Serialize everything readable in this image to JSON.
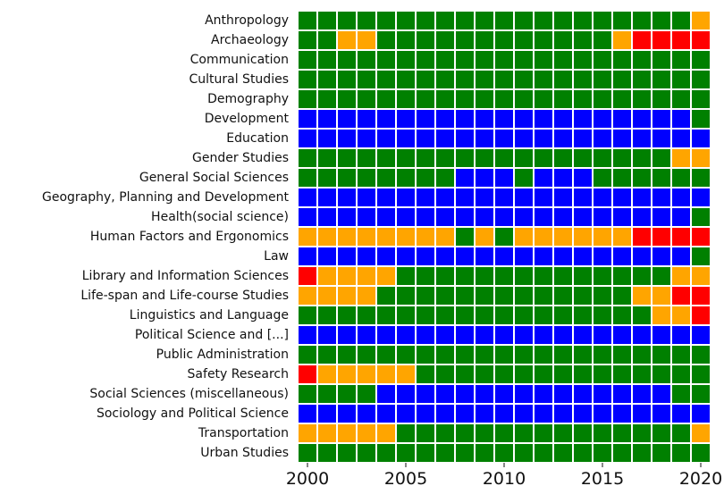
{
  "chart_data": {
    "type": "heatmap",
    "x": [
      2000,
      2001,
      2002,
      2003,
      2004,
      2005,
      2006,
      2007,
      2008,
      2009,
      2010,
      2011,
      2012,
      2013,
      2014,
      2015,
      2016,
      2017,
      2018,
      2019,
      2020
    ],
    "categories": [
      "Anthropology",
      "Archaeology",
      "Communication",
      "Cultural Studies",
      "Demography",
      "Development",
      "Education",
      "Gender Studies",
      "General Social Sciences",
      "Geography, Planning and Development",
      "Health(social science)",
      "Human Factors and Ergonomics",
      "Law",
      "Library and Information Sciences",
      "Life-span and Life-course Studies",
      "Linguistics and Language",
      "Political Science and [...]",
      "Public Administration",
      "Safety Research",
      "Social Sciences (miscellaneous)",
      "Sociology and Political Science",
      "Transportation",
      "Urban Studies"
    ],
    "colors": [
      "#008000",
      "#0000ff",
      "#ffa500",
      "#ff0000"
    ],
    "z": [
      [
        0,
        0,
        0,
        0,
        0,
        0,
        0,
        0,
        0,
        0,
        0,
        0,
        0,
        0,
        0,
        0,
        0,
        0,
        0,
        0,
        2
      ],
      [
        0,
        0,
        2,
        2,
        0,
        0,
        0,
        0,
        0,
        0,
        0,
        0,
        0,
        0,
        0,
        0,
        2,
        3,
        3,
        3,
        3
      ],
      [
        0,
        0,
        0,
        0,
        0,
        0,
        0,
        0,
        0,
        0,
        0,
        0,
        0,
        0,
        0,
        0,
        0,
        0,
        0,
        0,
        0
      ],
      [
        0,
        0,
        0,
        0,
        0,
        0,
        0,
        0,
        0,
        0,
        0,
        0,
        0,
        0,
        0,
        0,
        0,
        0,
        0,
        0,
        0
      ],
      [
        0,
        0,
        0,
        0,
        0,
        0,
        0,
        0,
        0,
        0,
        0,
        0,
        0,
        0,
        0,
        0,
        0,
        0,
        0,
        0,
        0
      ],
      [
        1,
        1,
        1,
        1,
        1,
        1,
        1,
        1,
        1,
        1,
        1,
        1,
        1,
        1,
        1,
        1,
        1,
        1,
        1,
        1,
        0
      ],
      [
        1,
        1,
        1,
        1,
        1,
        1,
        1,
        1,
        1,
        1,
        1,
        1,
        1,
        1,
        1,
        1,
        1,
        1,
        1,
        1,
        1
      ],
      [
        0,
        0,
        0,
        0,
        0,
        0,
        0,
        0,
        0,
        0,
        0,
        0,
        0,
        0,
        0,
        0,
        0,
        0,
        0,
        2,
        2
      ],
      [
        0,
        0,
        0,
        0,
        0,
        0,
        0,
        0,
        1,
        1,
        1,
        0,
        1,
        1,
        1,
        0,
        0,
        0,
        0,
        0,
        0
      ],
      [
        1,
        1,
        1,
        1,
        1,
        1,
        1,
        1,
        1,
        1,
        1,
        1,
        1,
        1,
        1,
        1,
        1,
        1,
        1,
        1,
        1
      ],
      [
        1,
        1,
        1,
        1,
        1,
        1,
        1,
        1,
        1,
        1,
        1,
        1,
        1,
        1,
        1,
        1,
        1,
        1,
        1,
        1,
        0
      ],
      [
        2,
        2,
        2,
        2,
        2,
        2,
        2,
        2,
        0,
        2,
        0,
        2,
        2,
        2,
        2,
        2,
        2,
        3,
        3,
        3,
        3
      ],
      [
        1,
        1,
        1,
        1,
        1,
        1,
        1,
        1,
        1,
        1,
        1,
        1,
        1,
        1,
        1,
        1,
        1,
        1,
        1,
        1,
        0
      ],
      [
        3,
        2,
        2,
        2,
        2,
        0,
        0,
        0,
        0,
        0,
        0,
        0,
        0,
        0,
        0,
        0,
        0,
        0,
        0,
        2,
        2
      ],
      [
        2,
        2,
        2,
        2,
        0,
        0,
        0,
        0,
        0,
        0,
        0,
        0,
        0,
        0,
        0,
        0,
        0,
        2,
        2,
        3,
        3
      ],
      [
        0,
        0,
        0,
        0,
        0,
        0,
        0,
        0,
        0,
        0,
        0,
        0,
        0,
        0,
        0,
        0,
        0,
        0,
        2,
        2,
        3
      ],
      [
        1,
        1,
        1,
        1,
        1,
        1,
        1,
        1,
        1,
        1,
        1,
        1,
        1,
        1,
        1,
        1,
        1,
        1,
        1,
        1,
        1
      ],
      [
        0,
        0,
        0,
        0,
        0,
        0,
        0,
        0,
        0,
        0,
        0,
        0,
        0,
        0,
        0,
        0,
        0,
        0,
        0,
        0,
        0
      ],
      [
        3,
        2,
        2,
        2,
        2,
        2,
        0,
        0,
        0,
        0,
        0,
        0,
        0,
        0,
        0,
        0,
        0,
        0,
        0,
        0,
        0
      ],
      [
        0,
        0,
        0,
        0,
        1,
        1,
        1,
        1,
        1,
        1,
        1,
        1,
        1,
        1,
        1,
        1,
        1,
        1,
        1,
        0,
        0
      ],
      [
        1,
        1,
        1,
        1,
        1,
        1,
        1,
        1,
        1,
        1,
        1,
        1,
        1,
        1,
        1,
        1,
        1,
        1,
        1,
        1,
        1
      ],
      [
        2,
        2,
        2,
        2,
        2,
        0,
        0,
        0,
        0,
        0,
        0,
        0,
        0,
        0,
        0,
        0,
        0,
        0,
        0,
        0,
        2
      ],
      [
        0,
        0,
        0,
        0,
        0,
        0,
        0,
        0,
        0,
        0,
        0,
        0,
        0,
        0,
        0,
        0,
        0,
        0,
        0,
        0,
        0
      ]
    ],
    "xlim": [
      1999.5,
      2020.5
    ],
    "xticks": [
      2000,
      2005,
      2010,
      2015,
      2020
    ]
  }
}
